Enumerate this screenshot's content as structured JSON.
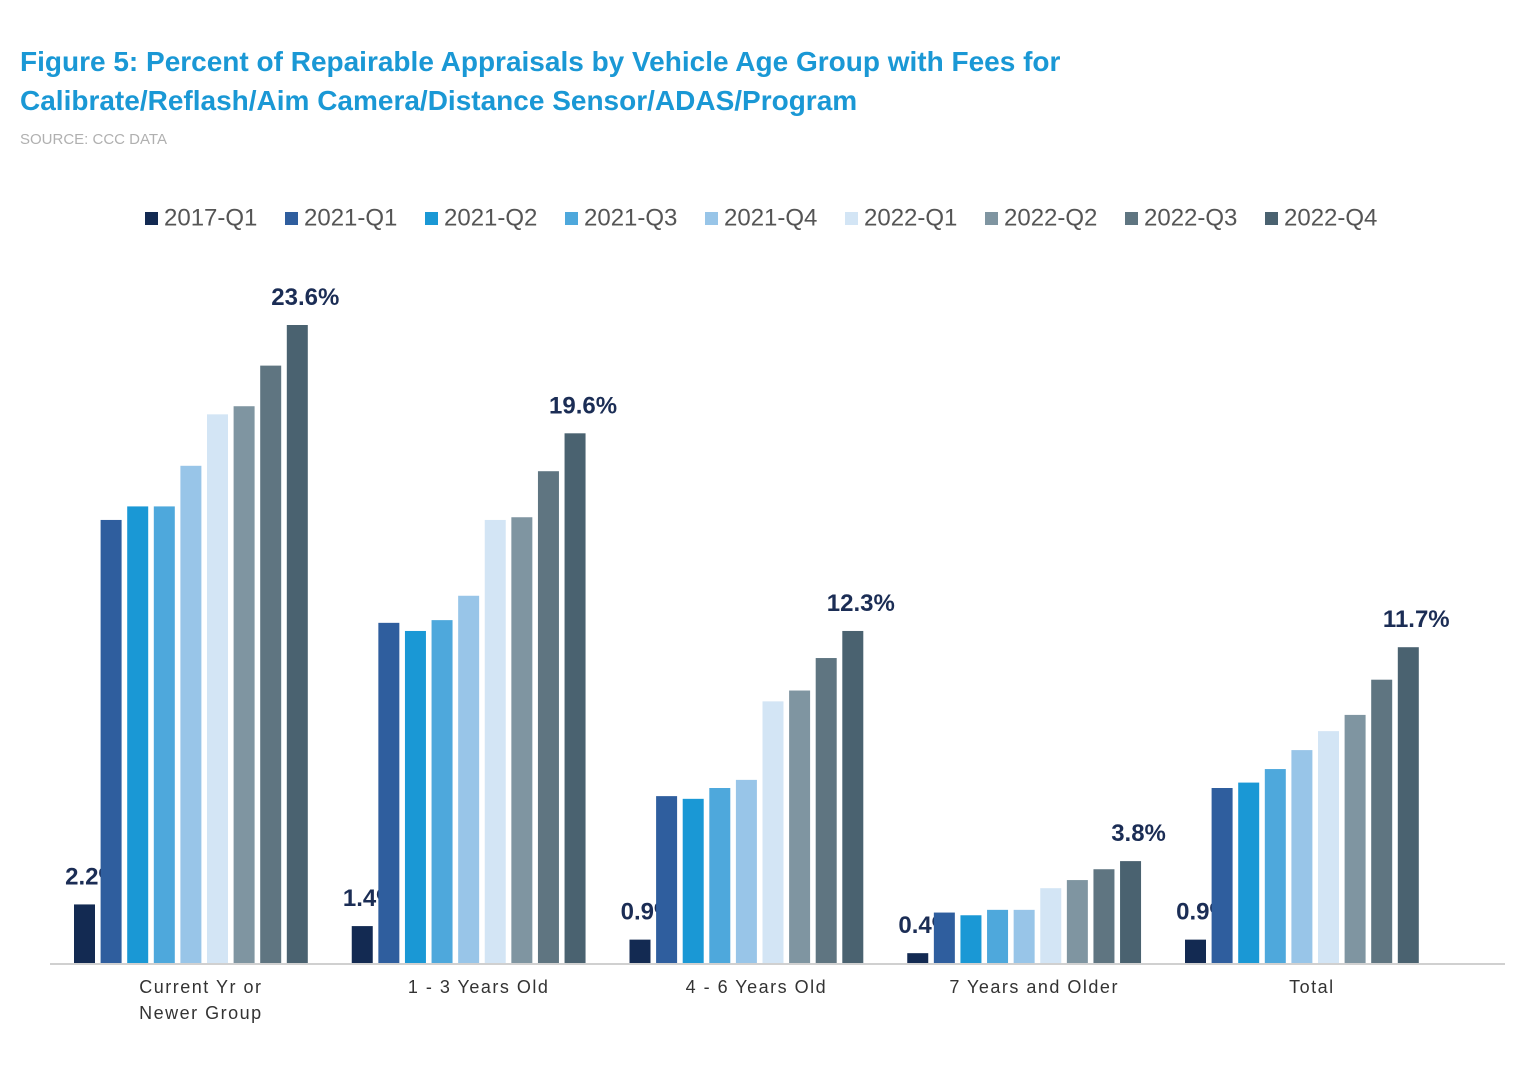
{
  "chart_data": {
    "type": "bar",
    "title": "Figure 5: Percent of Repairable Appraisals by Vehicle Age Group with Fees for Calibrate/Reflash/Aim Camera/Distance Sensor/ADAS/Program",
    "subtitle": "SOURCE: CCC DATA",
    "categories": [
      "Current Yr or Newer Group",
      "1 - 3 Years Old",
      "4 - 6 Years Old",
      "7 Years and Older",
      "Total"
    ],
    "series": [
      {
        "name": "2017-Q1",
        "color": "#132a52",
        "values": [
          2.2,
          1.4,
          0.9,
          0.4,
          0.9
        ],
        "value_labels": [
          "2.2%",
          "1.4%",
          "0.9%",
          "0.4%",
          "0.9%"
        ]
      },
      {
        "name": "2021-Q1",
        "color": "#2f5e9e",
        "values": [
          16.4,
          12.6,
          6.2,
          1.9,
          6.5
        ]
      },
      {
        "name": "2021-Q2",
        "color": "#1a98d5",
        "values": [
          16.9,
          12.3,
          6.1,
          1.8,
          6.7
        ]
      },
      {
        "name": "2021-Q3",
        "color": "#4ea8dc",
        "values": [
          16.9,
          12.7,
          6.5,
          2.0,
          7.2
        ]
      },
      {
        "name": "2021-Q4",
        "color": "#98c5e8",
        "values": [
          18.4,
          13.6,
          6.8,
          2.0,
          7.9
        ]
      },
      {
        "name": "2022-Q1",
        "color": "#d3e5f5",
        "values": [
          20.3,
          16.4,
          9.7,
          2.8,
          8.6
        ]
      },
      {
        "name": "2022-Q2",
        "color": "#7f95a1",
        "values": [
          20.6,
          16.5,
          10.1,
          3.1,
          9.2
        ]
      },
      {
        "name": "2022-Q3",
        "color": "#5f7581",
        "values": [
          22.1,
          18.2,
          11.3,
          3.5,
          10.5
        ]
      },
      {
        "name": "2022-Q4",
        "color": "#4a6270",
        "values": [
          23.6,
          19.6,
          12.3,
          3.8,
          11.7
        ],
        "value_labels": [
          "23.6%",
          "19.6%",
          "12.3%",
          "3.8%",
          "11.7%"
        ]
      }
    ],
    "legend": "top"
  }
}
